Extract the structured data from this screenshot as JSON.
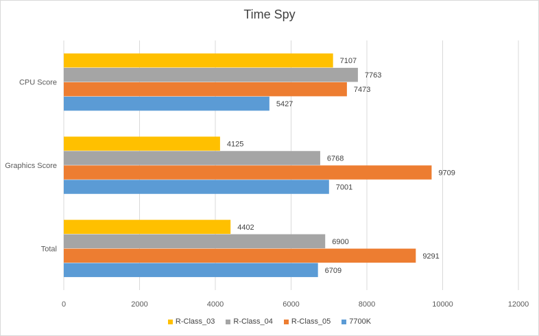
{
  "chart_data": {
    "type": "bar",
    "orientation": "horizontal",
    "title": "Time Spy",
    "xlabel": "",
    "ylabel": "",
    "xlim": [
      0,
      12000
    ],
    "xticks": [
      0,
      2000,
      4000,
      6000,
      8000,
      10000,
      12000
    ],
    "xtick_labels": [
      "0",
      "2000",
      "4000",
      "6000",
      "8000",
      "10000",
      "12000"
    ],
    "grid": true,
    "legend_position": "bottom",
    "categories": [
      "CPU Score",
      "Graphics Score",
      "Total"
    ],
    "series": [
      {
        "name": "R-Class_03",
        "color": "#ffc000",
        "values": [
          7107,
          4125,
          4402
        ],
        "labels": [
          "7107",
          "4125",
          "4402"
        ]
      },
      {
        "name": "R-Class_04",
        "color": "#a5a5a5",
        "values": [
          7763,
          6768,
          6900
        ],
        "labels": [
          "7763",
          "6768",
          "6900"
        ]
      },
      {
        "name": "R-Class_05",
        "color": "#ed7d31",
        "values": [
          7473,
          9709,
          9291
        ],
        "labels": [
          "7473",
          "9709",
          "9291"
        ]
      },
      {
        "name": "7700K",
        "color": "#5b9bd5",
        "values": [
          5427,
          7001,
          6709
        ],
        "labels": [
          "5427",
          "7001",
          "6709"
        ]
      }
    ]
  }
}
